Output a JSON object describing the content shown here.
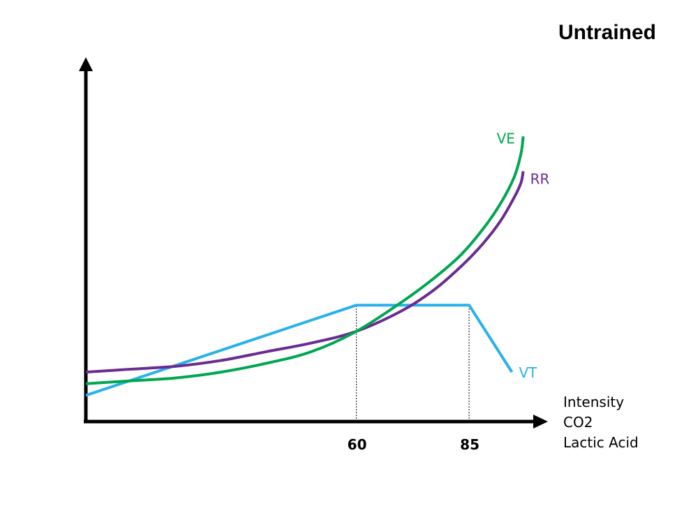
{
  "chart_data": {
    "type": "line",
    "title": "Untrained",
    "xlabel_lines": [
      "Intensity",
      "CO2",
      "Lactic Acid"
    ],
    "ylabel": "",
    "xlim": [
      0,
      100
    ],
    "ylim": [
      0,
      100
    ],
    "x_ticks": [
      {
        "value": 60,
        "label": "60"
      },
      {
        "value": 85,
        "label": "85"
      }
    ],
    "grid": false,
    "legend": "inline labels at line ends",
    "series": [
      {
        "name": "VE",
        "color": "#00A650",
        "points": [
          [
            0,
            13
          ],
          [
            10,
            14
          ],
          [
            20,
            15
          ],
          [
            30,
            17
          ],
          [
            40,
            20
          ],
          [
            50,
            24
          ],
          [
            60,
            31
          ],
          [
            70,
            41
          ],
          [
            77,
            49
          ],
          [
            83,
            57
          ],
          [
            88,
            66
          ],
          [
            92,
            75
          ],
          [
            95,
            84
          ],
          [
            96.5,
            92
          ],
          [
            97,
            98
          ]
        ]
      },
      {
        "name": "RR",
        "color": "#6A2C91",
        "points": [
          [
            0,
            17
          ],
          [
            10,
            18
          ],
          [
            20,
            19
          ],
          [
            30,
            21
          ],
          [
            40,
            24
          ],
          [
            50,
            27
          ],
          [
            60,
            31
          ],
          [
            70,
            38
          ],
          [
            77,
            45
          ],
          [
            83,
            53
          ],
          [
            88,
            61
          ],
          [
            92,
            69
          ],
          [
            95,
            77
          ],
          [
            96.5,
            82
          ],
          [
            97,
            86
          ]
        ]
      },
      {
        "name": "VT",
        "color": "#2AB0EC",
        "points": [
          [
            0,
            9
          ],
          [
            60,
            40
          ],
          [
            85,
            40
          ],
          [
            94.5,
            17
          ]
        ]
      }
    ],
    "reference_lines": [
      {
        "x": 60,
        "style": "dotted",
        "from_y": 0,
        "to_y": 40
      },
      {
        "x": 85,
        "style": "dotted",
        "from_y": 0,
        "to_y": 40
      }
    ]
  }
}
